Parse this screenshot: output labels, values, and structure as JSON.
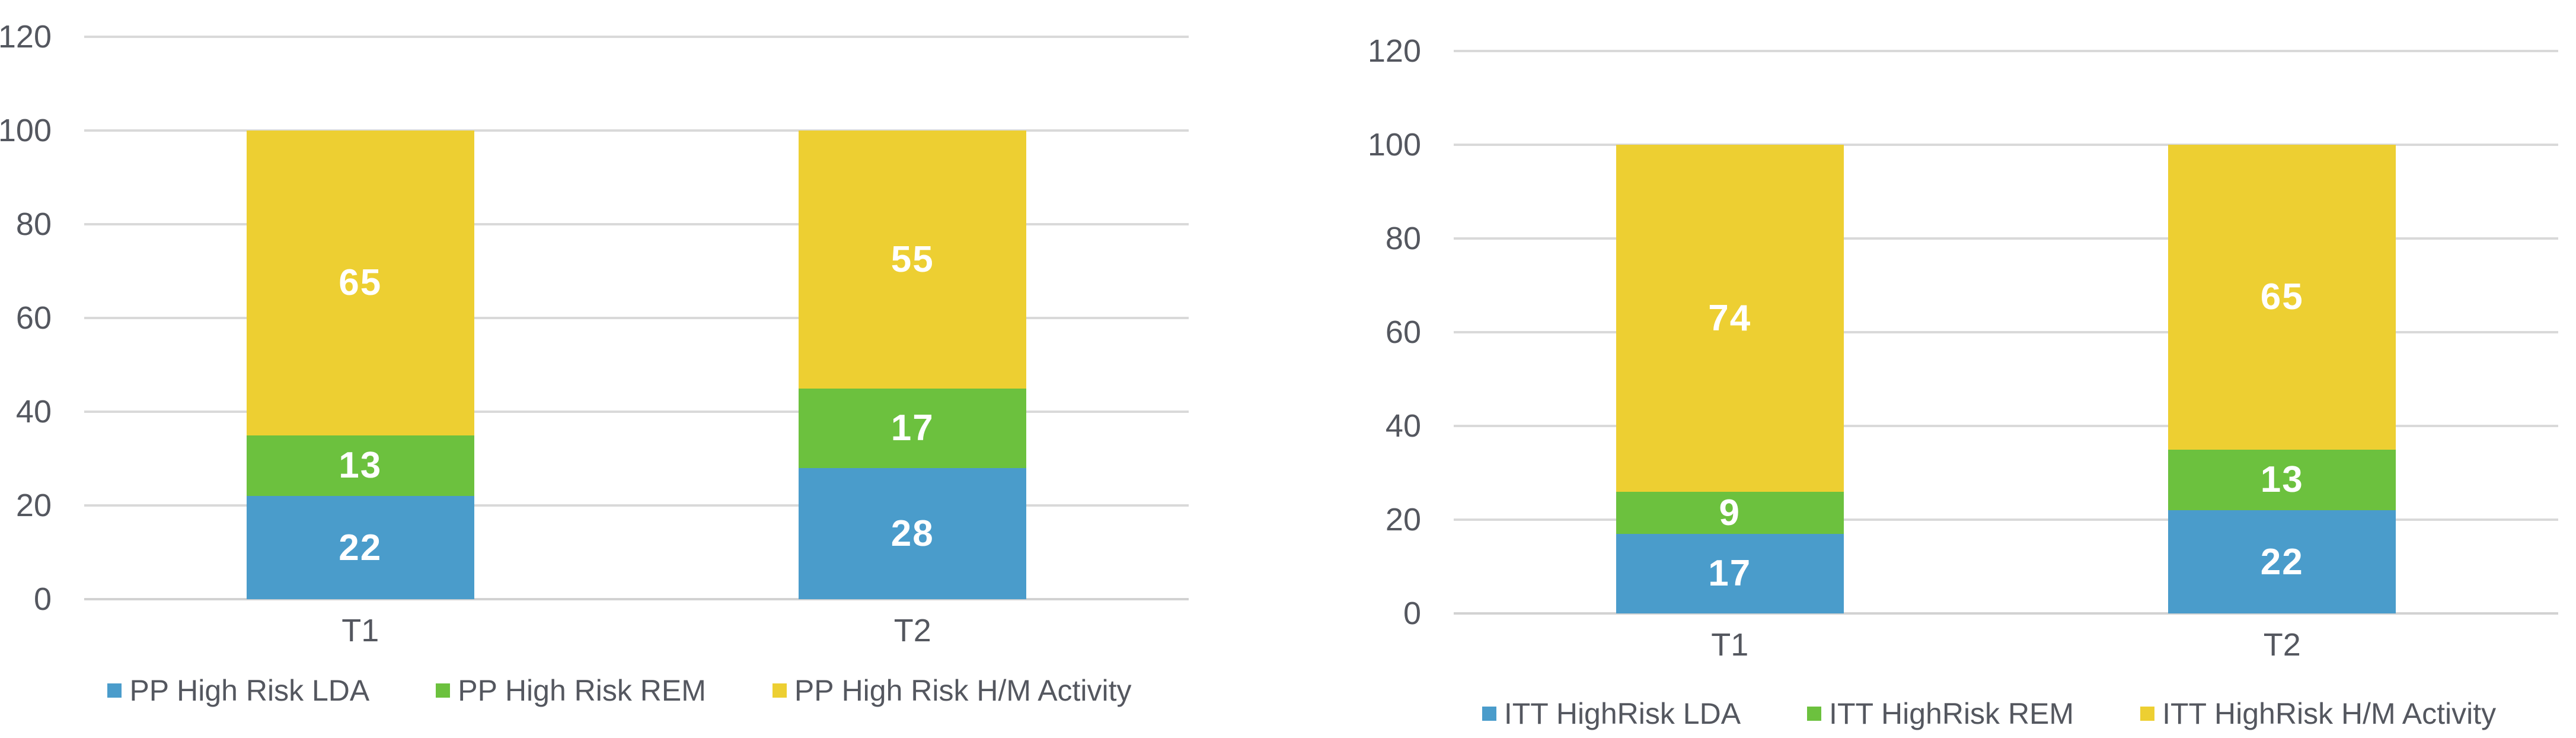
{
  "styles": {
    "background": "#FFFFFF",
    "series_colors": {
      "lda": "#4A9CCB",
      "rem": "#6CC13E",
      "hm_activity": "#EDCF32"
    },
    "gridline_color": "#D9D9D9",
    "baseline_color": "#D2D2D2",
    "axis_text_color": "#54575F",
    "legend_text_color": "#54575F",
    "data_label_color": "#FFFFFF"
  },
  "chart_data": [
    {
      "id": "pp-high-risk",
      "type": "bar",
      "stacked": true,
      "title": "",
      "xlabel": "",
      "ylabel": "",
      "categories": [
        "T1",
        "T2"
      ],
      "series": [
        {
          "name": "PP High Risk LDA",
          "color": "#4A9CCB",
          "values": [
            22,
            28
          ]
        },
        {
          "name": "PP High Risk REM",
          "color": "#6CC13E",
          "values": [
            13,
            17
          ]
        },
        {
          "name": "PP High Risk H/M Activity",
          "color": "#EDCF32",
          "values": [
            65,
            55
          ]
        }
      ],
      "ylim": [
        0,
        120
      ],
      "yticks": [
        0,
        20,
        40,
        60,
        80,
        100,
        120
      ],
      "grid": true,
      "data_labels": true,
      "legend_position": "bottom"
    },
    {
      "id": "itt-highrisk",
      "type": "bar",
      "stacked": true,
      "title": "",
      "xlabel": "",
      "ylabel": "",
      "categories": [
        "T1",
        "T2"
      ],
      "series": [
        {
          "name": "ITT HighRisk LDA",
          "color": "#4A9CCB",
          "values": [
            17,
            22
          ]
        },
        {
          "name": "ITT HighRisk REM",
          "color": "#6CC13E",
          "values": [
            9,
            13
          ]
        },
        {
          "name": "ITT HighRisk H/M Activity",
          "color": "#EDCF32",
          "values": [
            74,
            65
          ]
        }
      ],
      "ylim": [
        0,
        120
      ],
      "yticks": [
        0,
        20,
        40,
        60,
        80,
        100,
        120
      ],
      "grid": true,
      "data_labels": true,
      "legend_position": "bottom"
    }
  ]
}
